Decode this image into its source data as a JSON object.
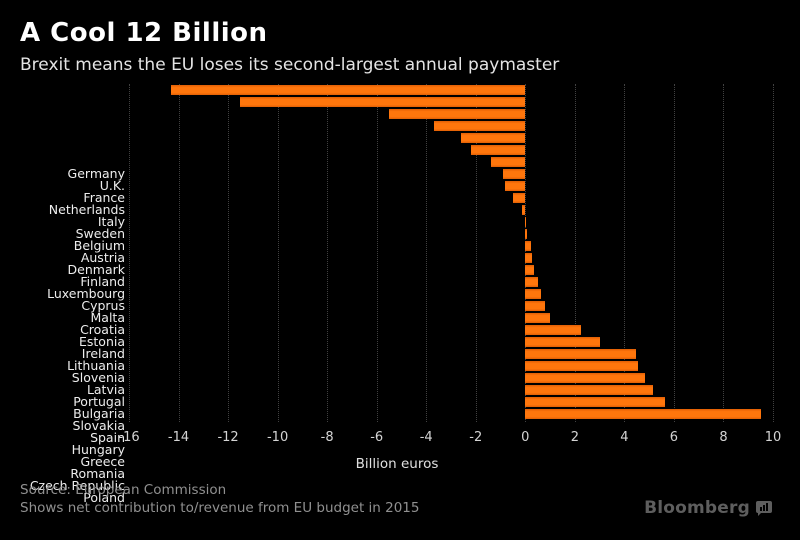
{
  "header": {
    "title": "A Cool 12 Billion",
    "subtitle": "Brexit means the EU loses its second-largest annual paymaster"
  },
  "chart_data": {
    "type": "bar",
    "orientation": "horizontal",
    "title": "A Cool 12 Billion",
    "subtitle": "Brexit means the EU loses its second-largest annual paymaster",
    "categories": [
      "Germany",
      "U.K.",
      "France",
      "Netherlands",
      "Italy",
      "Sweden",
      "Belgium",
      "Austria",
      "Denmark",
      "Finland",
      "Luxembourg",
      "Cyprus",
      "Malta",
      "Croatia",
      "Estonia",
      "Ireland",
      "Lithuania",
      "Slovenia",
      "Latvia",
      "Portugal",
      "Bulgaria",
      "Slovakia",
      "Spain",
      "Hungary",
      "Greece",
      "Romania",
      "Czech Republic",
      "Poland"
    ],
    "values": [
      -14.3,
      -11.5,
      -5.5,
      -3.7,
      -2.6,
      -2.2,
      -1.4,
      -0.9,
      -0.8,
      -0.5,
      -0.15,
      -0.03,
      0.08,
      0.25,
      0.27,
      0.35,
      0.5,
      0.65,
      0.8,
      1.0,
      2.25,
      3.0,
      4.45,
      4.55,
      4.85,
      5.15,
      5.65,
      9.5
    ],
    "xlabel": "Billion euros",
    "ylabel": "",
    "xlim": [
      -16,
      10
    ],
    "xticks": [
      -16,
      -14,
      -12,
      -10,
      -8,
      -6,
      -4,
      -2,
      0,
      2,
      4,
      6,
      8,
      10
    ],
    "grid": "vertical-dotted",
    "legend": "none",
    "bar_color": "#ff760c",
    "background_color": "#000000"
  },
  "footer": {
    "source": "Source: European Commission",
    "note": "Shows net contribution to/revenue from EU budget in 2015",
    "brand": "Bloomberg"
  }
}
